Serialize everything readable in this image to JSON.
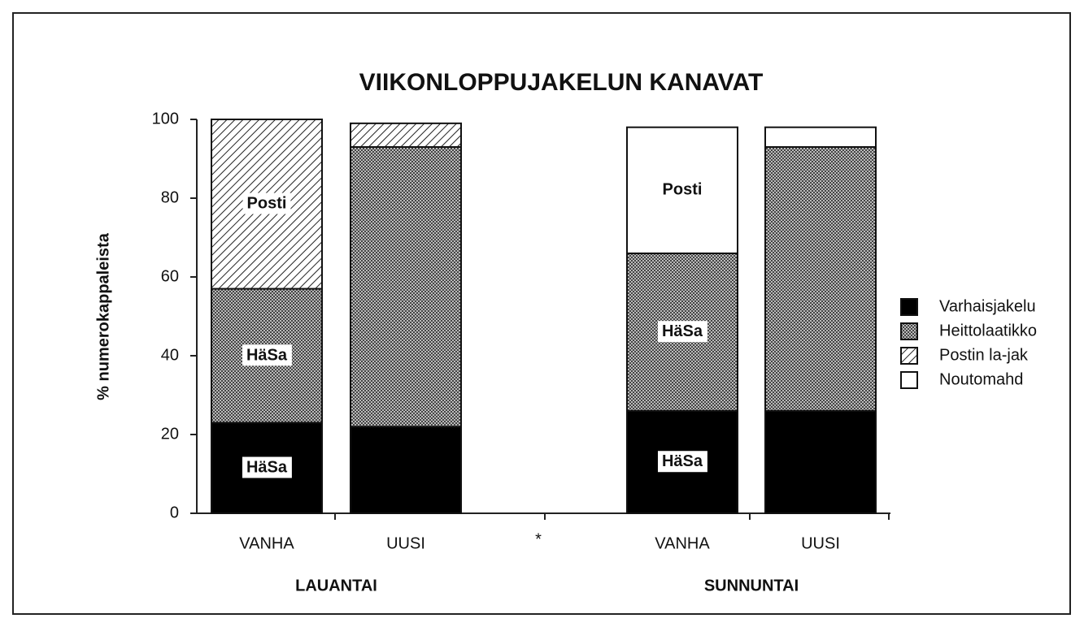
{
  "chart_data": {
    "type": "stacked_bar",
    "title": "VIIKONLOPPUJAKELUN KANAVAT",
    "y_label": "% numerokappaleista",
    "categories": [
      "VANHA",
      "UUSI",
      "VANHA",
      "UUSI"
    ],
    "groups": [
      "LAUANTAI",
      "SUNNUNTAI"
    ],
    "separator": "*",
    "series": [
      {
        "name": "Varhaisjakelu",
        "color": "#000000",
        "pattern": "solid",
        "values": [
          23,
          22,
          26,
          26
        ],
        "segment_labels": [
          "HäSa",
          null,
          "HäSa",
          null
        ]
      },
      {
        "name": "Heittolaatikko",
        "color": "#777777",
        "pattern": "crosshatch",
        "values": [
          34,
          71,
          40,
          67
        ],
        "segment_labels": [
          "HäSa",
          null,
          "HäSa",
          null
        ]
      },
      {
        "name": "Postin la-jak",
        "color": "#000000",
        "pattern": "diagonal",
        "values": [
          43,
          6,
          0,
          0
        ],
        "segment_labels": [
          "Posti",
          null,
          null,
          null
        ]
      },
      {
        "name": "Noutomahd",
        "color": "#ffffff",
        "pattern": "none",
        "values": [
          0,
          0,
          32,
          5
        ],
        "segment_labels": [
          null,
          null,
          "Posti",
          null
        ]
      }
    ],
    "ylim": [
      0,
      100
    ],
    "yticks": [
      0,
      20,
      40,
      60,
      80,
      100
    ],
    "legend": "right"
  }
}
